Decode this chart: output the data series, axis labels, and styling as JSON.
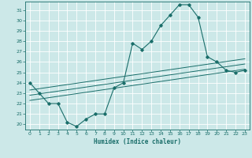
{
  "title": "",
  "xlabel": "Humidex (Indice chaleur)",
  "bg_color": "#cce8e8",
  "grid_color": "#ffffff",
  "line_color": "#1a6e6a",
  "xlim": [
    -0.5,
    23.5
  ],
  "ylim": [
    19.5,
    31.8
  ],
  "xticks": [
    0,
    1,
    2,
    3,
    4,
    5,
    6,
    7,
    8,
    9,
    10,
    11,
    12,
    13,
    14,
    15,
    16,
    17,
    18,
    19,
    20,
    21,
    22,
    23
  ],
  "yticks": [
    20,
    21,
    22,
    23,
    24,
    25,
    26,
    27,
    28,
    29,
    30,
    31
  ],
  "main_x": [
    0,
    1,
    2,
    3,
    4,
    5,
    6,
    7,
    8,
    9,
    10,
    11,
    12,
    13,
    14,
    15,
    16,
    17,
    18,
    19,
    20,
    21,
    22,
    23
  ],
  "main_y": [
    24,
    23,
    22,
    22,
    20.2,
    19.8,
    20.5,
    21,
    21,
    23.5,
    24,
    27.8,
    27.2,
    28,
    29.5,
    30.5,
    31.5,
    31.5,
    30.3,
    26.5,
    26,
    25.2,
    25,
    25.2
  ],
  "line1_x": [
    0,
    23
  ],
  "line1_y": [
    22.8,
    25.8
  ],
  "line2_x": [
    0,
    23
  ],
  "line2_y": [
    23.3,
    26.3
  ],
  "line3_x": [
    0,
    23
  ],
  "line3_y": [
    22.3,
    25.3
  ]
}
